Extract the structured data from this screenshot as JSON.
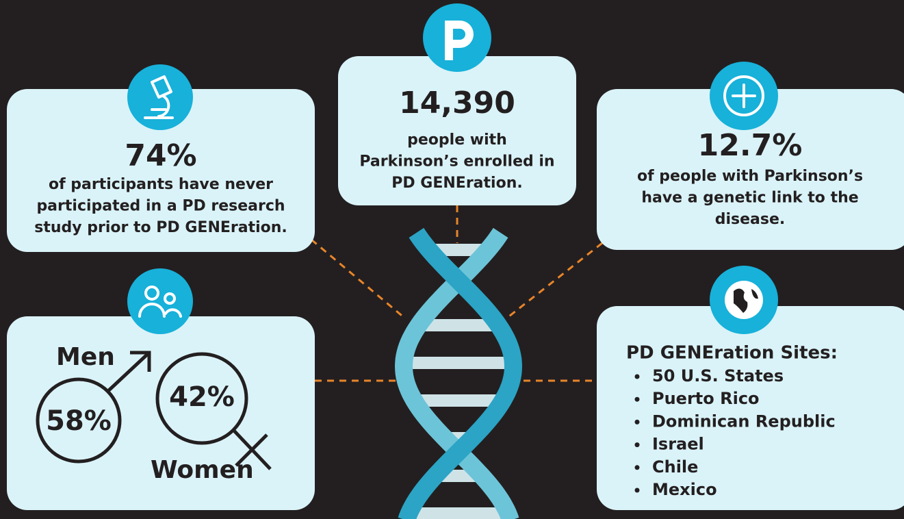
{
  "cards": [
    {
      "stat": "74%",
      "lines": [
        "of participants have never",
        "participated in a PD research",
        "study prior to PD GENEration."
      ]
    },
    {
      "stat": "14,390",
      "lines": [
        "people with",
        "Parkinson’s enrolled in",
        "PD GENEration."
      ]
    },
    {
      "stat": "12.7%",
      "lines": [
        "of people with Parkinson’s",
        "have a genetic link to the",
        "disease."
      ]
    }
  ],
  "gender": {
    "men_label": "Men",
    "men_value": "58%",
    "women_value": "42%",
    "women_label": "Women"
  },
  "sites": {
    "title": "PD GENEration Sites:",
    "items": [
      "50 U.S. States",
      "Puerto Rico",
      "Dominican Republic",
      "Israel",
      "Chile",
      "Mexico"
    ]
  }
}
